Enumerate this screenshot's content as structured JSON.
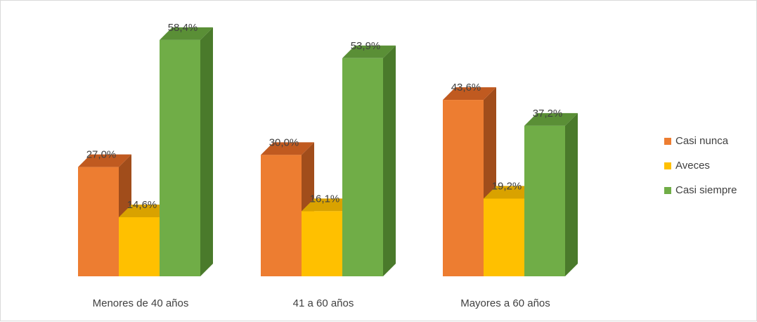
{
  "chart_data": {
    "type": "bar",
    "title": "",
    "xlabel": "",
    "ylabel": "",
    "categories": [
      "Menores de 40 años",
      "41 a 60 años",
      "Mayores a 60 años"
    ],
    "series": [
      {
        "name": "Casi nunca",
        "values": [
          27.0,
          30.0,
          43.6
        ],
        "labels": [
          "27,0%",
          "30,0%",
          "43,6%"
        ],
        "color": "#ED7D31",
        "side_color": "#A14D1B",
        "top_color": "#C05A20"
      },
      {
        "name": "Aveces",
        "values": [
          14.6,
          16.1,
          19.2
        ],
        "labels": [
          "14,6%",
          "16,1%",
          "19,2%"
        ],
        "color": "#FFC000",
        "side_color": "#B78900",
        "top_color": "#D9A200"
      },
      {
        "name": "Casi siempre",
        "values": [
          58.4,
          53.9,
          37.2
        ],
        "labels": [
          "58,4%",
          "53,9%",
          "37,2%"
        ],
        "color": "#70AD47",
        "side_color": "#4A7A2B",
        "top_color": "#5A8F36"
      }
    ],
    "ylim": [
      0,
      100
    ],
    "grid": false,
    "legend_position": "right",
    "style": "3d-clustered-column"
  }
}
